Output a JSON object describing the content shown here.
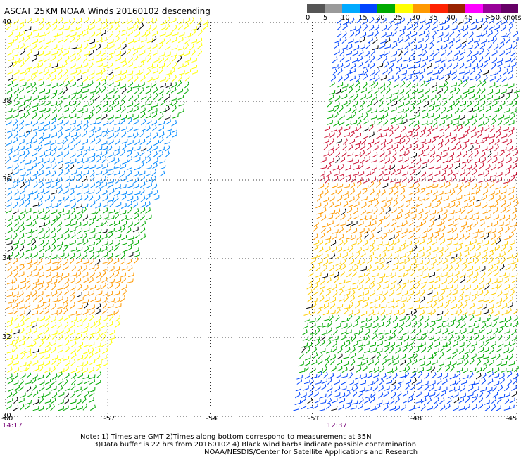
{
  "title": "ASCAT 25KM NOAA Winds 20160102 descending",
  "legend": {
    "units_label": ">50 knots",
    "labels": [
      "0",
      "5",
      "10",
      "15",
      "20",
      "25",
      "30",
      "35",
      "40",
      "45"
    ],
    "colors": [
      "#555555",
      "#9a9a9a",
      "#00aaff",
      "#0044ff",
      "#00aa00",
      "#ffff00",
      "#ff9900",
      "#ff2200",
      "#992200",
      "#ff00ff",
      "#990099",
      "#660066"
    ]
  },
  "axes": {
    "lat_labels": [
      "40",
      "38",
      "36",
      "34",
      "32",
      "30"
    ],
    "lon_labels": [
      "-60",
      "-57",
      "-54",
      "-51",
      "-48",
      "-45"
    ]
  },
  "pass_times": [
    "14:17",
    "12:37"
  ],
  "notes": {
    "line1": "Note: 1) Times are GMT 2)Times along bottom correspond to measurement at 35N",
    "line2": "      3)Data buffer is 22 hrs from 20160102 4) Black wind barbs indicate possible contamination",
    "credit": "NOAA/NESDIS/Center for Satellite Applications and Research"
  },
  "map_data": {
    "lat_range": [
      30,
      40
    ],
    "lon_range": [
      -60,
      -45
    ],
    "swaths": [
      {
        "name": "14:17",
        "wind_regions": [
          {
            "lat": [
              38.5,
              40
            ],
            "speed_kt": "20-25",
            "color": "#ffff00"
          },
          {
            "lat": [
              37.5,
              38.5
            ],
            "speed_kt": "15-20",
            "color": "#00aa00"
          },
          {
            "lat": [
              35.3,
              37.5
            ],
            "speed_kt": "10-15",
            "color": "#0088ff"
          },
          {
            "lat": [
              34.0,
              35.3
            ],
            "speed_kt": "15-25",
            "color": "#00aa00"
          },
          {
            "lat": [
              32.5,
              34.0
            ],
            "speed_kt": "25-30",
            "color": "#ff9900"
          },
          {
            "lat": [
              31.0,
              32.5
            ],
            "speed_kt": "20-25",
            "color": "#ffff00"
          },
          {
            "lat": [
              30,
              31.0
            ],
            "speed_kt": "15-20",
            "color": "#00aa00"
          }
        ]
      },
      {
        "name": "12:37",
        "wind_regions": [
          {
            "lat": [
              38.5,
              40
            ],
            "speed_kt": "10-20",
            "color": "#0044ff"
          },
          {
            "lat": [
              37.3,
              38.5
            ],
            "speed_kt": "15-20",
            "color": "#00aa00"
          },
          {
            "lat": [
              35.8,
              37.3
            ],
            "speed_kt": "30-35",
            "color": "#cc1133"
          },
          {
            "lat": [
              34.5,
              35.8
            ],
            "speed_kt": "25-30",
            "color": "#ff9900"
          },
          {
            "lat": [
              32.5,
              34.5
            ],
            "speed_kt": "20-25",
            "color": "#ffcc00"
          },
          {
            "lat": [
              31.0,
              32.5
            ],
            "speed_kt": "15-20",
            "color": "#00aa00"
          },
          {
            "lat": [
              30,
              31.0
            ],
            "speed_kt": "10-15",
            "color": "#0044ff"
          }
        ]
      }
    ]
  }
}
